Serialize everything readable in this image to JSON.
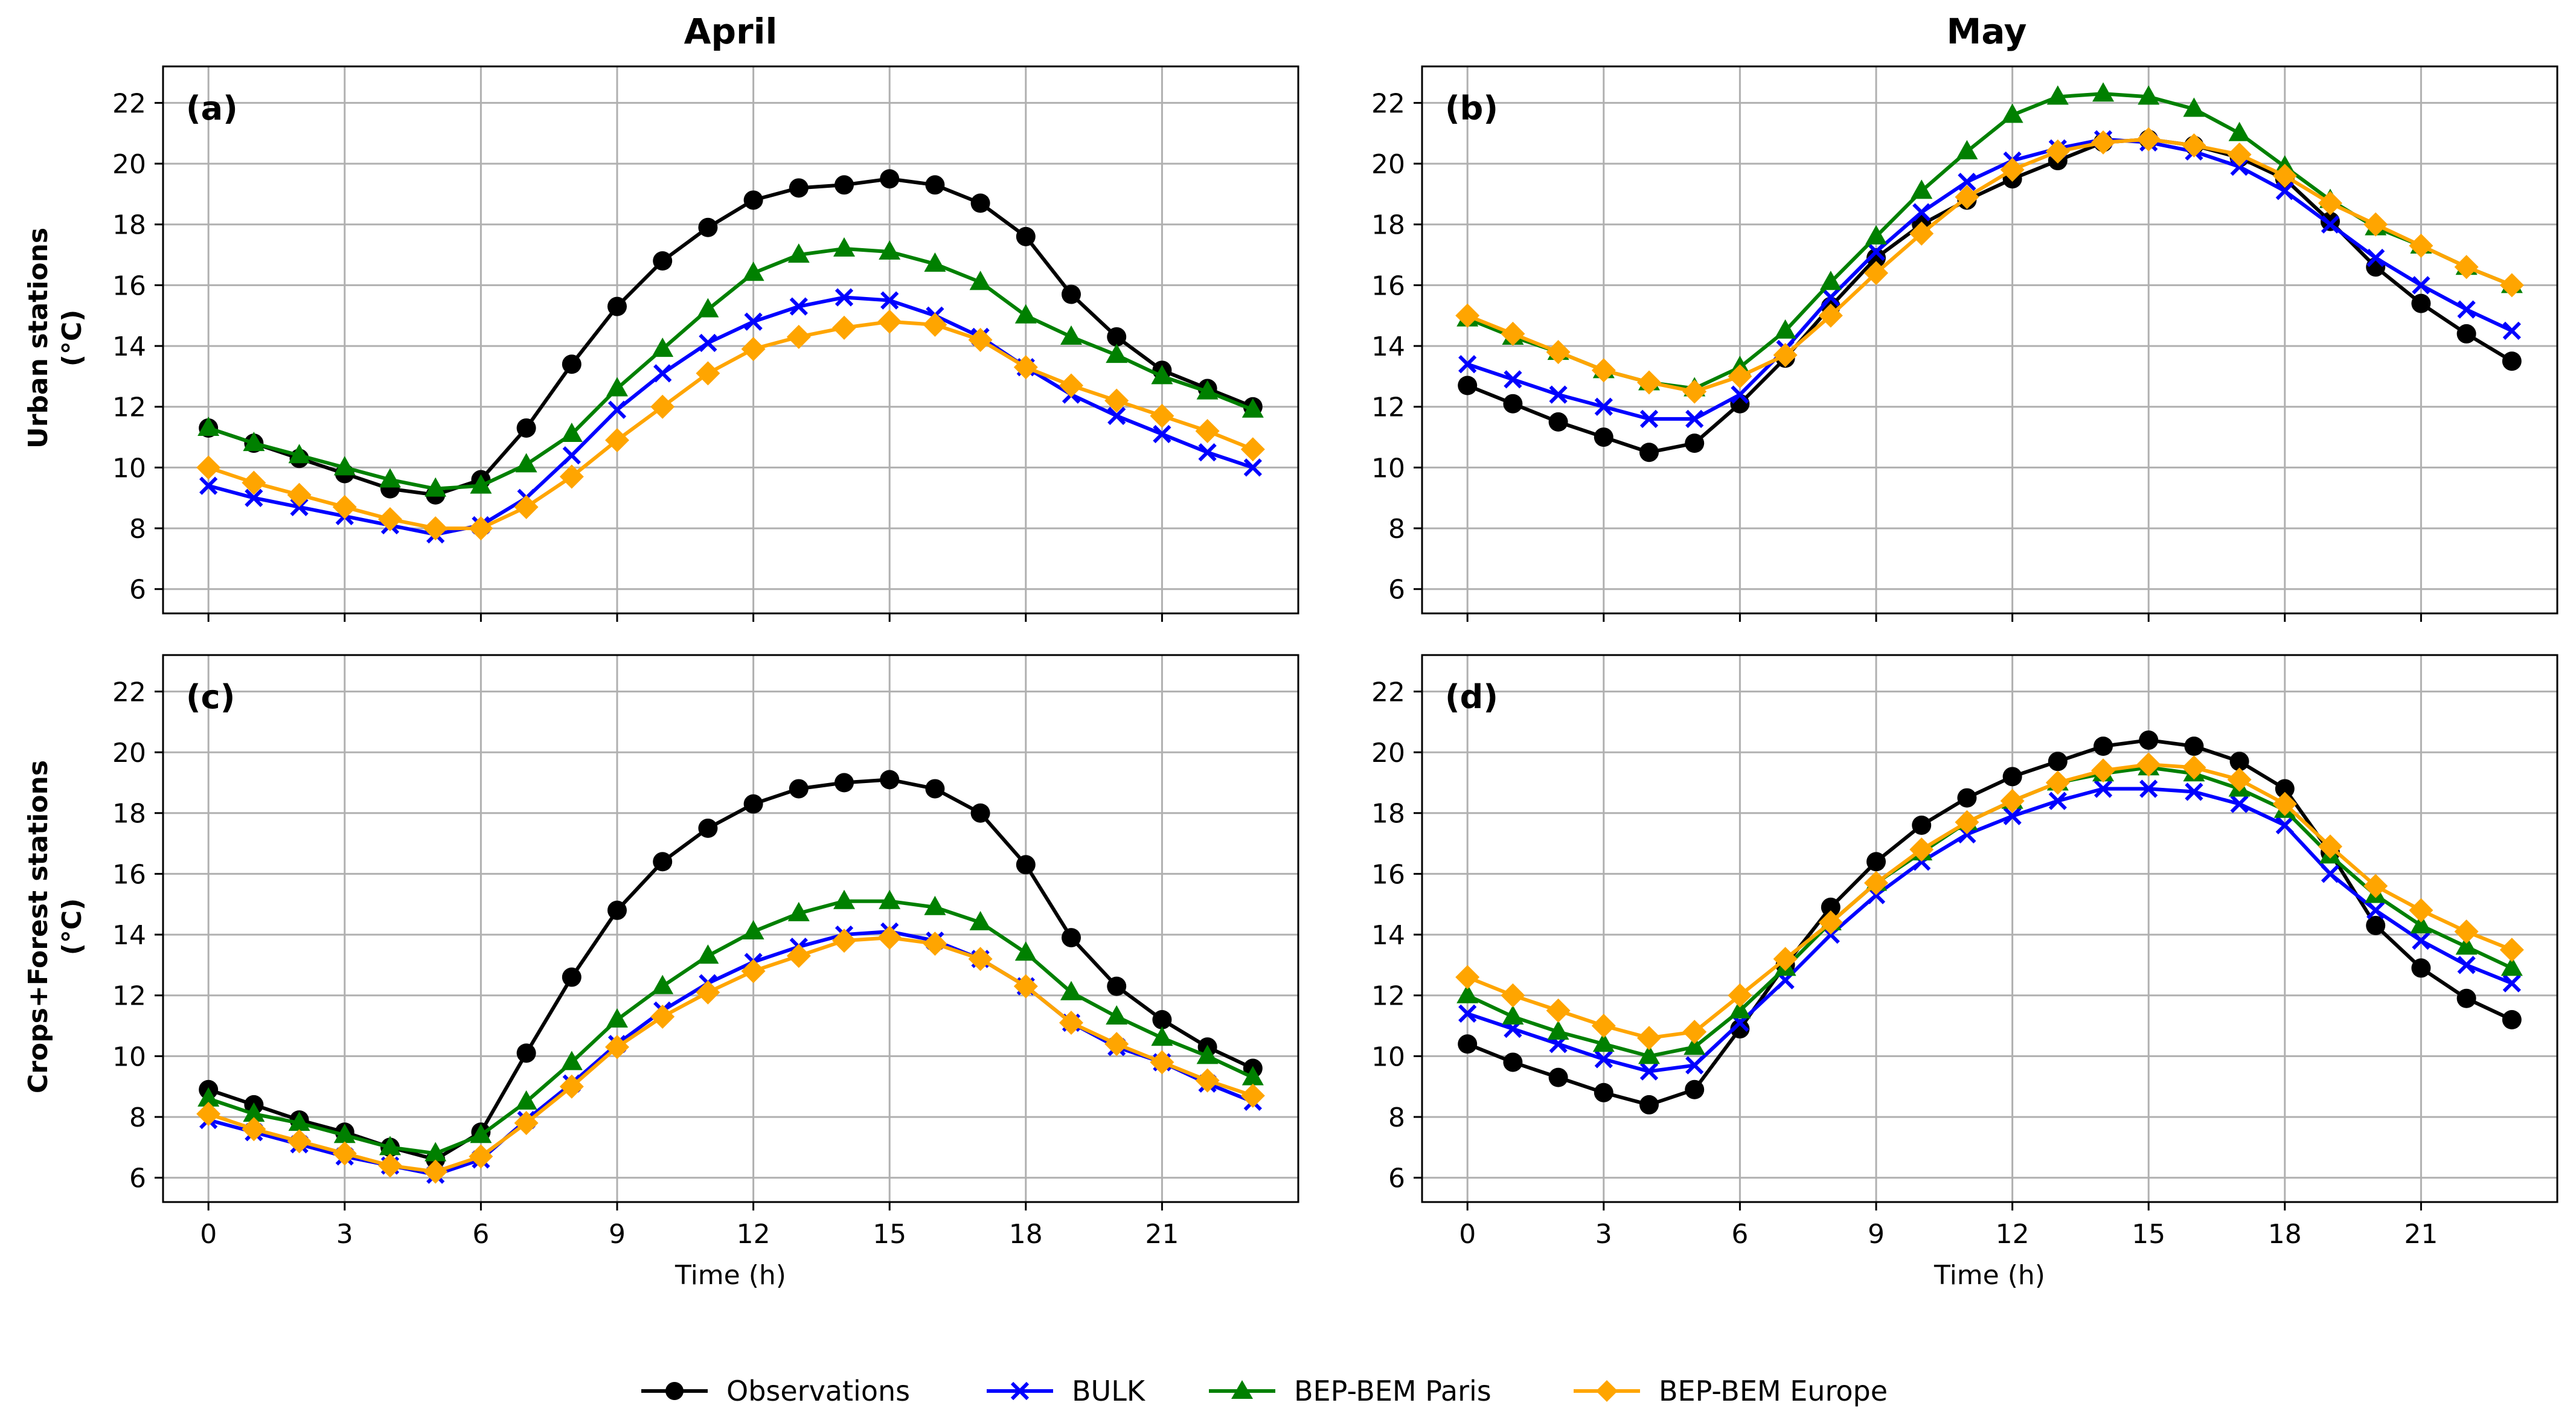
{
  "chart_data": {
    "type": "line",
    "columns": [
      "April",
      "May"
    ],
    "rows": [
      [
        "Urban stations",
        "(°C)"
      ],
      [
        "Crops+Forest stations",
        "(°C)"
      ]
    ],
    "xlabel": "Time (h)",
    "xlim": [
      -1,
      24
    ],
    "ylim": [
      5.2,
      23.2
    ],
    "xticks": [
      0,
      3,
      6,
      9,
      12,
      15,
      18,
      21
    ],
    "yticks": [
      6,
      8,
      10,
      12,
      14,
      16,
      18,
      20,
      22
    ],
    "x": [
      0,
      1,
      2,
      3,
      4,
      5,
      6,
      7,
      8,
      9,
      10,
      11,
      12,
      13,
      14,
      15,
      16,
      17,
      18,
      19,
      20,
      21,
      22,
      23
    ],
    "series_styles": [
      {
        "name": "Observations",
        "color": "#000000",
        "marker": "circle"
      },
      {
        "name": "BULK",
        "color": "#0000ff",
        "marker": "x"
      },
      {
        "name": "BEP-BEM Paris",
        "color": "#008000",
        "marker": "triangle"
      },
      {
        "name": "BEP-BEM Europe",
        "color": "#ffa500",
        "marker": "diamond"
      }
    ],
    "panels": [
      {
        "label": "(a)",
        "month": "April",
        "stations": "Urban",
        "series": [
          {
            "name": "Observations",
            "values": [
              11.3,
              10.8,
              10.3,
              9.8,
              9.3,
              9.1,
              9.6,
              11.3,
              13.4,
              15.3,
              16.8,
              17.9,
              18.8,
              19.2,
              19.3,
              19.5,
              19.3,
              18.7,
              17.6,
              15.7,
              14.3,
              13.2,
              12.6,
              12.0
            ]
          },
          {
            "name": "BULK",
            "values": [
              9.4,
              9.0,
              8.7,
              8.4,
              8.1,
              7.8,
              8.1,
              9.0,
              10.4,
              11.9,
              13.1,
              14.1,
              14.8,
              15.3,
              15.6,
              15.5,
              15.0,
              14.3,
              13.3,
              12.4,
              11.7,
              11.1,
              10.5,
              10.0
            ]
          },
          {
            "name": "BEP-BEM Paris",
            "values": [
              11.3,
              10.8,
              10.4,
              10.0,
              9.6,
              9.3,
              9.4,
              10.1,
              11.1,
              12.6,
              13.9,
              15.2,
              16.4,
              17.0,
              17.2,
              17.1,
              16.7,
              16.1,
              15.0,
              14.3,
              13.7,
              13.0,
              12.5,
              11.9
            ]
          },
          {
            "name": "BEP-BEM Europe",
            "values": [
              10.0,
              9.5,
              9.1,
              8.7,
              8.3,
              8.0,
              8.0,
              8.7,
              9.7,
              10.9,
              12.0,
              13.1,
              13.9,
              14.3,
              14.6,
              14.8,
              14.7,
              14.2,
              13.3,
              12.7,
              12.2,
              11.7,
              11.2,
              10.6
            ]
          }
        ]
      },
      {
        "label": "(b)",
        "month": "May",
        "stations": "Urban",
        "series": [
          {
            "name": "Observations",
            "values": [
              12.7,
              12.1,
              11.5,
              11.0,
              10.5,
              10.8,
              12.1,
              13.6,
              15.3,
              16.9,
              18.0,
              18.8,
              19.5,
              20.1,
              20.7,
              20.8,
              20.6,
              20.2,
              19.5,
              18.1,
              16.6,
              15.4,
              14.4,
              13.5
            ]
          },
          {
            "name": "BULK",
            "values": [
              13.4,
              12.9,
              12.4,
              12.0,
              11.6,
              11.6,
              12.4,
              13.9,
              15.6,
              17.1,
              18.4,
              19.4,
              20.1,
              20.5,
              20.8,
              20.7,
              20.4,
              19.9,
              19.1,
              18.0,
              16.9,
              16.0,
              15.2,
              14.5
            ]
          },
          {
            "name": "BEP-BEM Paris",
            "values": [
              14.9,
              14.3,
              13.8,
              13.2,
              12.8,
              12.6,
              13.3,
              14.5,
              16.1,
              17.6,
              19.1,
              20.4,
              21.6,
              22.2,
              22.3,
              22.2,
              21.8,
              21.0,
              19.9,
              18.8,
              17.9,
              17.3,
              16.6,
              16.0
            ]
          },
          {
            "name": "BEP-BEM Europe",
            "values": [
              15.0,
              14.4,
              13.8,
              13.2,
              12.8,
              12.5,
              13.0,
              13.7,
              15.0,
              16.4,
              17.7,
              18.9,
              19.8,
              20.4,
              20.7,
              20.8,
              20.6,
              20.3,
              19.6,
              18.7,
              18.0,
              17.3,
              16.6,
              16.0
            ]
          }
        ]
      },
      {
        "label": "(c)",
        "month": "April",
        "stations": "Crops+Forest",
        "series": [
          {
            "name": "Observations",
            "values": [
              8.9,
              8.4,
              7.9,
              7.5,
              7.0,
              6.6,
              7.5,
              10.1,
              12.6,
              14.8,
              16.4,
              17.5,
              18.3,
              18.8,
              19.0,
              19.1,
              18.8,
              18.0,
              16.3,
              13.9,
              12.3,
              11.2,
              10.3,
              9.6
            ]
          },
          {
            "name": "BULK",
            "values": [
              7.9,
              7.5,
              7.1,
              6.7,
              6.4,
              6.1,
              6.6,
              7.9,
              9.1,
              10.4,
              11.5,
              12.4,
              13.1,
              13.6,
              14.0,
              14.1,
              13.8,
              13.2,
              12.3,
              11.1,
              10.3,
              9.8,
              9.1,
              8.5
            ]
          },
          {
            "name": "BEP-BEM Paris",
            "values": [
              8.6,
              8.1,
              7.8,
              7.4,
              7.0,
              6.8,
              7.4,
              8.5,
              9.8,
              11.2,
              12.3,
              13.3,
              14.1,
              14.7,
              15.1,
              15.1,
              14.9,
              14.4,
              13.4,
              12.1,
              11.3,
              10.6,
              10.0,
              9.3
            ]
          },
          {
            "name": "BEP-BEM Europe",
            "values": [
              8.1,
              7.6,
              7.2,
              6.8,
              6.4,
              6.2,
              6.7,
              7.8,
              9.0,
              10.3,
              11.3,
              12.1,
              12.8,
              13.3,
              13.8,
              13.9,
              13.7,
              13.2,
              12.3,
              11.1,
              10.4,
              9.8,
              9.2,
              8.7
            ]
          }
        ]
      },
      {
        "label": "(d)",
        "month": "May",
        "stations": "Crops+Forest",
        "series": [
          {
            "name": "Observations",
            "values": [
              10.4,
              9.8,
              9.3,
              8.8,
              8.4,
              8.9,
              10.9,
              13.0,
              14.9,
              16.4,
              17.6,
              18.5,
              19.2,
              19.7,
              20.2,
              20.4,
              20.2,
              19.7,
              18.8,
              16.7,
              14.3,
              12.9,
              11.9,
              11.2
            ]
          },
          {
            "name": "BULK",
            "values": [
              11.4,
              10.9,
              10.4,
              9.9,
              9.5,
              9.7,
              11.1,
              12.5,
              14.0,
              15.3,
              16.4,
              17.3,
              17.9,
              18.4,
              18.8,
              18.8,
              18.7,
              18.3,
              17.6,
              16.0,
              14.8,
              13.8,
              13.0,
              12.4
            ]
          },
          {
            "name": "BEP-BEM Paris",
            "values": [
              12.0,
              11.3,
              10.8,
              10.4,
              10.0,
              10.3,
              11.5,
              12.9,
              14.4,
              15.7,
              16.7,
              17.7,
              18.4,
              19.0,
              19.3,
              19.5,
              19.3,
              18.8,
              18.1,
              16.6,
              15.3,
              14.3,
              13.6,
              12.9
            ]
          },
          {
            "name": "BEP-BEM Europe",
            "values": [
              12.6,
              12.0,
              11.5,
              11.0,
              10.6,
              10.8,
              12.0,
              13.2,
              14.4,
              15.7,
              16.8,
              17.7,
              18.4,
              19.0,
              19.4,
              19.6,
              19.5,
              19.1,
              18.3,
              16.9,
              15.6,
              14.8,
              14.1,
              13.5
            ]
          }
        ]
      }
    ]
  },
  "legend": {
    "entries": [
      "Observations",
      "BULK",
      "BEP-BEM Paris",
      "BEP-BEM Europe"
    ]
  }
}
